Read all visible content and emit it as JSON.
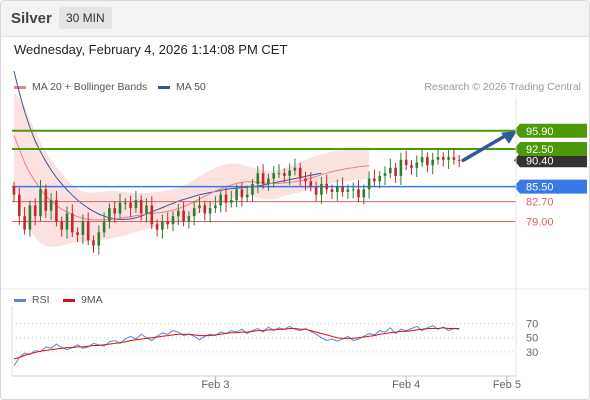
{
  "header": {
    "symbol": "Silver",
    "interval": "30 MIN"
  },
  "datetime": "Wednesday, February 4, 2026 1:14:08 PM CET",
  "price_legend": [
    {
      "label": "MA 20 + Bollinger Bands",
      "color": "#f08080"
    },
    {
      "label": "MA 50",
      "color": "#2f5a9a"
    }
  ],
  "credit": "Research © 2026 Trading Central",
  "rsi_legend": [
    {
      "label": "RSI",
      "color": "#5b87d6"
    },
    {
      "label": "9MA",
      "color": "#dd1111"
    }
  ],
  "colors": {
    "up": "#2e7d32",
    "down": "#c62828",
    "resistance": "#4c9a0a",
    "pivot": "#3b78e7",
    "support": "#e06060",
    "arrow": "#2f5a9a"
  },
  "chart_data": [
    {
      "type": "candlestick",
      "title": "",
      "ylim": [
        67,
        102
      ],
      "current_price": 90.4,
      "levels": [
        {
          "value": 95.9,
          "label": "95.90",
          "kind": "resistance"
        },
        {
          "value": 92.5,
          "label": "92.50",
          "kind": "resistance"
        },
        {
          "value": 85.5,
          "label": "85.50",
          "kind": "pivot"
        },
        {
          "value": 82.7,
          "label": "82.70",
          "kind": "support"
        },
        {
          "value": 79.0,
          "label": "79.00",
          "kind": "support"
        }
      ],
      "current_label": "90.40",
      "x_ticks": [
        "Feb 3",
        "Feb 4",
        "Feb 5"
      ],
      "x_tick_index": [
        38,
        74,
        93
      ],
      "close": [
        84,
        80,
        77.5,
        82,
        80,
        85,
        81,
        83,
        79,
        77.5,
        80.5,
        77,
        76.5,
        79,
        75.5,
        74.5,
        77,
        79,
        81.5,
        80.5,
        82.5,
        82.5,
        81.5,
        83,
        80.5,
        82,
        78.5,
        77.5,
        79,
        78.5,
        80,
        81,
        79,
        80,
        81.5,
        82,
        80.5,
        81.5,
        82,
        84,
        82.5,
        83,
        85,
        83.5,
        84,
        86,
        88,
        86,
        87,
        88,
        88,
        87.5,
        88.5,
        89,
        87,
        86.5,
        85.5,
        84,
        86,
        85,
        84.5,
        85.5,
        84.5,
        85,
        85,
        83.5,
        85,
        87,
        86.5,
        87.5,
        88,
        89,
        87.5,
        90.5,
        89.5,
        89,
        90,
        91,
        89.5,
        90.5,
        91,
        90.5,
        91,
        90.5,
        90.4
      ],
      "ma20": [
        95,
        92.5,
        90,
        88,
        86.5,
        85,
        83.8,
        82.8,
        82,
        81.3,
        80.8,
        80.3,
        79.9,
        79.6,
        79.4,
        79.3,
        79.3,
        79.3,
        79.4,
        79.5,
        79.6,
        79.8,
        79.9,
        80.1,
        80.2,
        80.4,
        80.5,
        80.6,
        80.7,
        80.9,
        81.1,
        81.4,
        81.8,
        82.2,
        82.7,
        83.2,
        83.7,
        84.2,
        84.7,
        85.1,
        85.5,
        85.8,
        86.1,
        86.3,
        86.4,
        86.4,
        86.3,
        86.2,
        86.1,
        86.1,
        86.1,
        86.2,
        86.3,
        86.4,
        86.6,
        86.8,
        87.1,
        87.4,
        87.7,
        88,
        88.3,
        88.5,
        88.7,
        88.9,
        89,
        89.2,
        89.3,
        89.4
      ],
      "ma50": [
        107,
        103,
        99.5,
        96.5,
        94,
        92,
        90.2,
        88.6,
        87.2,
        86,
        84.9,
        83.9,
        83,
        82.2,
        81.5,
        80.9,
        80.4,
        80,
        79.7,
        79.5,
        79.4,
        79.4,
        79.5,
        79.7,
        80,
        80.4,
        80.8,
        81.2,
        81.6,
        82,
        82.4,
        82.8,
        83.1,
        83.4,
        83.7,
        84,
        84.2,
        84.4,
        84.6,
        84.8,
        85,
        85.1,
        85.2,
        85.3,
        85.4,
        85.5,
        85.6,
        85.8,
        86,
        86.2,
        86.4,
        86.6,
        86.8,
        87,
        87.2,
        87.4,
        87.6,
        87.8,
        88
      ],
      "bb_upper": [
        103,
        102,
        100.5,
        98,
        96,
        93.8,
        92,
        90.5,
        89.2,
        88,
        86.8,
        85.8,
        85.1,
        84.6,
        84.4,
        84.4,
        84.5,
        84.6,
        84.7,
        84.7,
        84.6,
        84.5,
        84.4,
        84.3,
        84.3,
        84.3,
        84.4,
        84.5,
        84.6,
        84.8,
        85,
        85.3,
        85.7,
        86.2,
        86.8,
        87.4,
        88,
        88.5,
        89,
        89.4,
        89.7,
        89.8,
        89.8,
        89.6,
        89.3,
        89,
        88.7,
        88.5,
        88.4,
        88.4,
        88.6,
        88.9,
        89.3,
        89.7,
        90.1,
        90.5,
        90.9,
        91.2,
        91.5,
        91.8,
        92,
        92.2,
        92.3,
        92.4,
        92.4,
        92.5,
        92.5,
        92.5
      ],
      "bb_lower": [
        86,
        82.5,
        79.5,
        77.5,
        76,
        75,
        74.5,
        74.3,
        74.3,
        74.5,
        74.8,
        75,
        75.1,
        75.2,
        75.3,
        75.4,
        75.5,
        75.6,
        75.8,
        76,
        76.2,
        76.4,
        76.7,
        77,
        77.3,
        77.6,
        77.9,
        78.1,
        78.3,
        78.5,
        78.7,
        79,
        79.3,
        79.7,
        80.1,
        80.6,
        81.1,
        81.6,
        82.1,
        82.6,
        82.9,
        83.2,
        83.5,
        83.7,
        83.7,
        83.6,
        83.4,
        83.2,
        83.1,
        83.2,
        83.4,
        83.7,
        84,
        84.2,
        84.5,
        84.7,
        85,
        85.3,
        85.6,
        85.9,
        86.1,
        86.3,
        86.5,
        86.6,
        86.7,
        86.8,
        86.9,
        87
      ]
    },
    {
      "type": "line",
      "title": "RSI",
      "ylim": [
        0,
        85
      ],
      "y_ticks": [
        70,
        50,
        30
      ],
      "series": [
        {
          "name": "RSI",
          "values": [
            10,
            22,
            28,
            26,
            32,
            30,
            37,
            35,
            41,
            36,
            33,
            36,
            40,
            35,
            37,
            42,
            40,
            38,
            44,
            46,
            42,
            48,
            52,
            48,
            55,
            50,
            46,
            52,
            57,
            55,
            60,
            58,
            53,
            55,
            52,
            47,
            52,
            55,
            53,
            58,
            56,
            60,
            58,
            62,
            56,
            60,
            63,
            58,
            65,
            60,
            64,
            62,
            66,
            62,
            60,
            63,
            59,
            55,
            50,
            46,
            48,
            45,
            48,
            52,
            46,
            48,
            52,
            56,
            54,
            60,
            58,
            64,
            56,
            62,
            60,
            63,
            66,
            60,
            64,
            67,
            62,
            65,
            60,
            63,
            62
          ]
        },
        {
          "name": "9MA",
          "values": [
            20,
            22,
            25,
            27,
            29,
            31,
            32,
            33,
            34,
            35,
            36,
            36,
            37,
            37,
            38,
            39,
            39,
            40,
            41,
            42,
            43,
            44,
            46,
            47,
            48,
            49,
            50,
            51,
            52,
            53,
            54,
            55,
            55,
            55,
            54,
            53,
            53,
            53,
            54,
            55,
            56,
            57,
            57,
            58,
            58,
            59,
            60,
            60,
            61,
            61,
            62,
            62,
            63,
            63,
            62,
            62,
            60,
            58,
            56,
            54,
            52,
            50,
            49,
            49,
            49,
            50,
            51,
            52,
            53,
            55,
            56,
            57,
            58,
            59,
            59,
            60,
            61,
            62,
            63,
            63,
            63,
            64,
            63,
            63,
            63
          ]
        }
      ]
    }
  ]
}
